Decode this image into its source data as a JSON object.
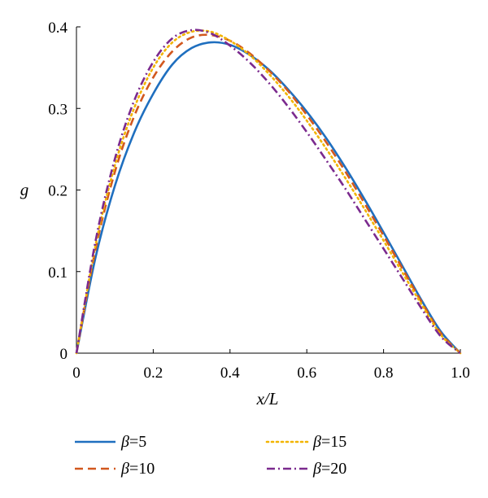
{
  "chart_data": {
    "type": "line",
    "xlabel": "x/L",
    "ylabel": "g",
    "xlim": [
      0,
      1.0
    ],
    "ylim": [
      0,
      0.4
    ],
    "xticks": [
      "0",
      "0.2",
      "0.4",
      "0.6",
      "0.8",
      "1.0"
    ],
    "yticks": [
      "0",
      "0.1",
      "0.2",
      "0.3",
      "0.4"
    ],
    "grid": false,
    "legend_position": "bottom",
    "x": [
      0,
      0.05,
      0.1,
      0.15,
      0.2,
      0.25,
      0.3,
      0.35,
      0.4,
      0.45,
      0.5,
      0.55,
      0.6,
      0.65,
      0.7,
      0.75,
      0.8,
      0.85,
      0.9,
      0.95,
      1.0
    ],
    "series": [
      {
        "name": "β=5",
        "symbol": "β",
        "suffix": "=5",
        "color": "#1f6fbf",
        "dash": "solid",
        "values": [
          0,
          0.118,
          0.205,
          0.27,
          0.318,
          0.354,
          0.374,
          0.381,
          0.378,
          0.366,
          0.348,
          0.324,
          0.296,
          0.264,
          0.228,
          0.189,
          0.148,
          0.106,
          0.064,
          0.026,
          0
        ]
      },
      {
        "name": "β=10",
        "symbol": "β",
        "suffix": "=10",
        "color": "#d2581e",
        "dash": "dashed",
        "values": [
          0,
          0.128,
          0.222,
          0.29,
          0.338,
          0.37,
          0.387,
          0.39,
          0.383,
          0.368,
          0.347,
          0.322,
          0.292,
          0.259,
          0.223,
          0.184,
          0.144,
          0.103,
          0.062,
          0.024,
          0
        ]
      },
      {
        "name": "β=15",
        "symbol": "β",
        "suffix": "=15",
        "color": "#f2b400",
        "dash": "dotted",
        "values": [
          0,
          0.133,
          0.23,
          0.3,
          0.35,
          0.381,
          0.394,
          0.394,
          0.383,
          0.366,
          0.343,
          0.316,
          0.285,
          0.251,
          0.215,
          0.177,
          0.138,
          0.098,
          0.059,
          0.022,
          0
        ]
      },
      {
        "name": "β=20",
        "symbol": "β",
        "suffix": "=20",
        "color": "#7b2a8e",
        "dash": "dashdot",
        "values": [
          0,
          0.138,
          0.238,
          0.309,
          0.357,
          0.386,
          0.396,
          0.392,
          0.377,
          0.357,
          0.332,
          0.303,
          0.271,
          0.237,
          0.202,
          0.165,
          0.128,
          0.091,
          0.054,
          0.02,
          0
        ]
      }
    ]
  }
}
